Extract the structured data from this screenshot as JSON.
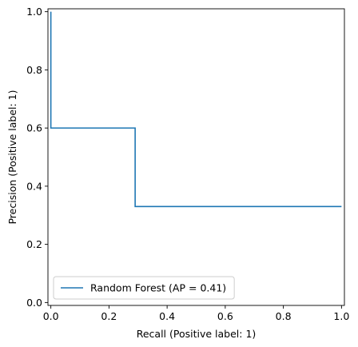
{
  "chart_data": {
    "type": "line",
    "xlabel": "Recall (Positive label: 1)",
    "ylabel": "Precision (Positive label: 1)",
    "xlim": [
      -0.01,
      1.01
    ],
    "ylim": [
      -0.01,
      1.01
    ],
    "xticks": [
      0.0,
      0.2,
      0.4,
      0.6,
      0.8,
      1.0
    ],
    "xtick_labels": [
      "0.0",
      "0.2",
      "0.4",
      "0.6",
      "0.8",
      "1.0"
    ],
    "yticks": [
      0.0,
      0.2,
      0.4,
      0.6,
      0.8,
      1.0
    ],
    "ytick_labels": [
      "0.0",
      "0.2",
      "0.4",
      "0.6",
      "0.8",
      "1.0"
    ],
    "grid": false,
    "legend_position": "lower-left",
    "drawstyle": "steps-post",
    "series": [
      {
        "name": "Random Forest (AP = 0.41)",
        "color": "#1f77b4",
        "x": [
          1.0,
          0.29,
          0.29,
          0.0,
          0.0
        ],
        "y": [
          0.33,
          0.33,
          0.6,
          0.6,
          1.0
        ]
      }
    ]
  }
}
